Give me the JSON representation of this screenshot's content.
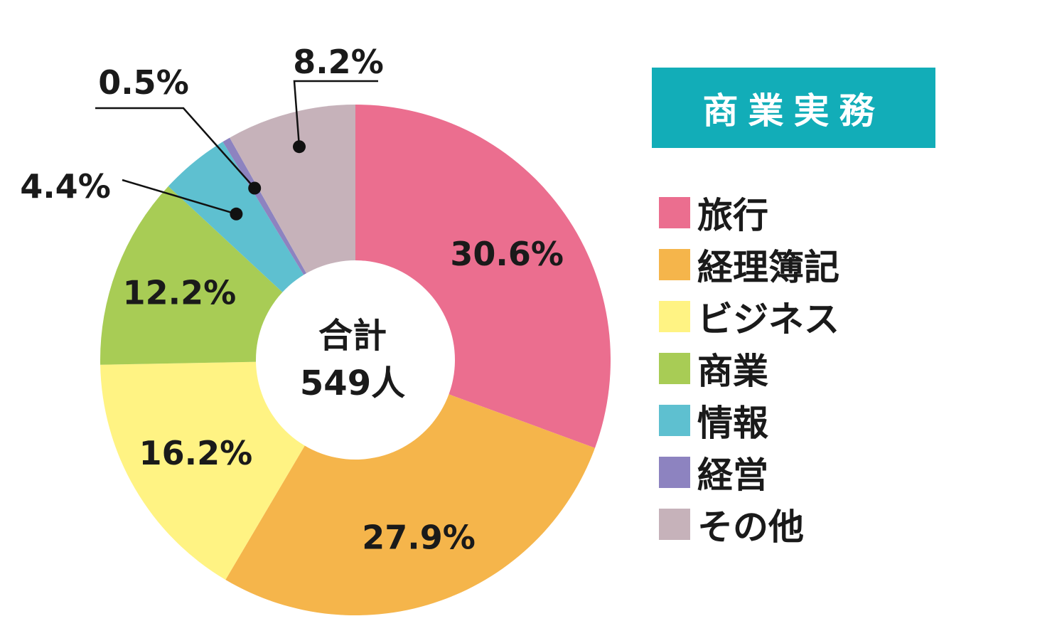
{
  "chart_data": {
    "type": "pie",
    "style": "donut",
    "title": "商業実務",
    "center_label": {
      "line1": "合計",
      "line2": "549人"
    },
    "legend_placement": "right",
    "slices": [
      {
        "label": "旅行",
        "value": 30.6,
        "display": "30.6%",
        "color": "#eb6e8f"
      },
      {
        "label": "経理簿記",
        "value": 27.9,
        "display": "27.9%",
        "color": "#f5b54b"
      },
      {
        "label": "ビジネス",
        "value": 16.2,
        "display": "16.2%",
        "color": "#fff383"
      },
      {
        "label": "商業",
        "value": 12.2,
        "display": "12.2%",
        "color": "#a8cc55"
      },
      {
        "label": "情報",
        "value": 4.4,
        "display": "4.4%",
        "color": "#5ec0d0"
      },
      {
        "label": "経営",
        "value": 0.5,
        "display": "0.5%",
        "color": "#8d83c0"
      },
      {
        "label": "その他",
        "value": 8.2,
        "display": "8.2%",
        "color": "#c6b2ba"
      }
    ]
  }
}
